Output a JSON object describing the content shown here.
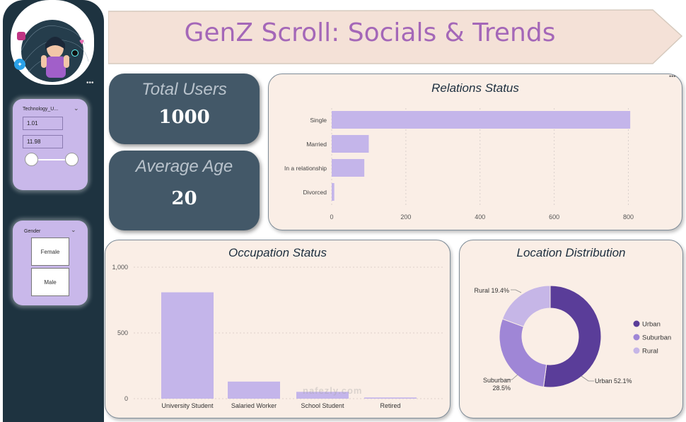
{
  "dashboard": {
    "title": "GenZ Scroll: Socials & Trends"
  },
  "filters": {
    "technology": {
      "label": "Technology_U...",
      "min_value": "1.01",
      "max_value": "11.98",
      "selected_range_fraction": [
        0,
        1
      ]
    },
    "gender": {
      "label": "Gender",
      "options": [
        "Female",
        "Male"
      ]
    }
  },
  "kpis": {
    "total_users": {
      "label": "Total Users",
      "value": "1000"
    },
    "average_age": {
      "label": "Average Age",
      "value": "20"
    }
  },
  "colors": {
    "sidebar": "#1e3340",
    "kpi_card": "#435868",
    "chart_card": "#faeee6",
    "bar": "#c4b5ea",
    "title": "#a467b8",
    "urban": "#5a3d99",
    "suburban": "#9f86d6",
    "rural": "#c6b6e7"
  },
  "icons": [
    "twitter-icon",
    "instagram-icon",
    "tiktok-icon",
    "heart-icon",
    "more-options-icon"
  ],
  "chart_data": [
    {
      "type": "bar",
      "orientation": "horizontal",
      "title": "Relations Status",
      "categories": [
        "Single",
        "Married",
        "In a relationship",
        "Divorced"
      ],
      "values": [
        805,
        100,
        88,
        7
      ],
      "xlim": [
        0,
        820
      ],
      "xticks": [
        "0",
        "200",
        "400",
        "600",
        "800"
      ],
      "grid": true
    },
    {
      "type": "bar",
      "title": "Occupation Status",
      "categories": [
        "University Student",
        "Salaried Worker",
        "School Student",
        "Retired"
      ],
      "values": [
        809,
        130,
        52,
        9
      ],
      "ylim": [
        0,
        1000
      ],
      "yticks": [
        "0",
        "500",
        "1,000"
      ],
      "grid": true
    },
    {
      "type": "pie",
      "donut": true,
      "title": "Location Distribution",
      "labels": [
        "Urban",
        "Suburban",
        "Rural"
      ],
      "values": [
        52.1,
        28.5,
        19.4
      ],
      "slice_labels": [
        "Urban 52.1%",
        "Suburban 28.5%",
        "Rural 19.4%"
      ],
      "legend_position": "right"
    }
  ]
}
